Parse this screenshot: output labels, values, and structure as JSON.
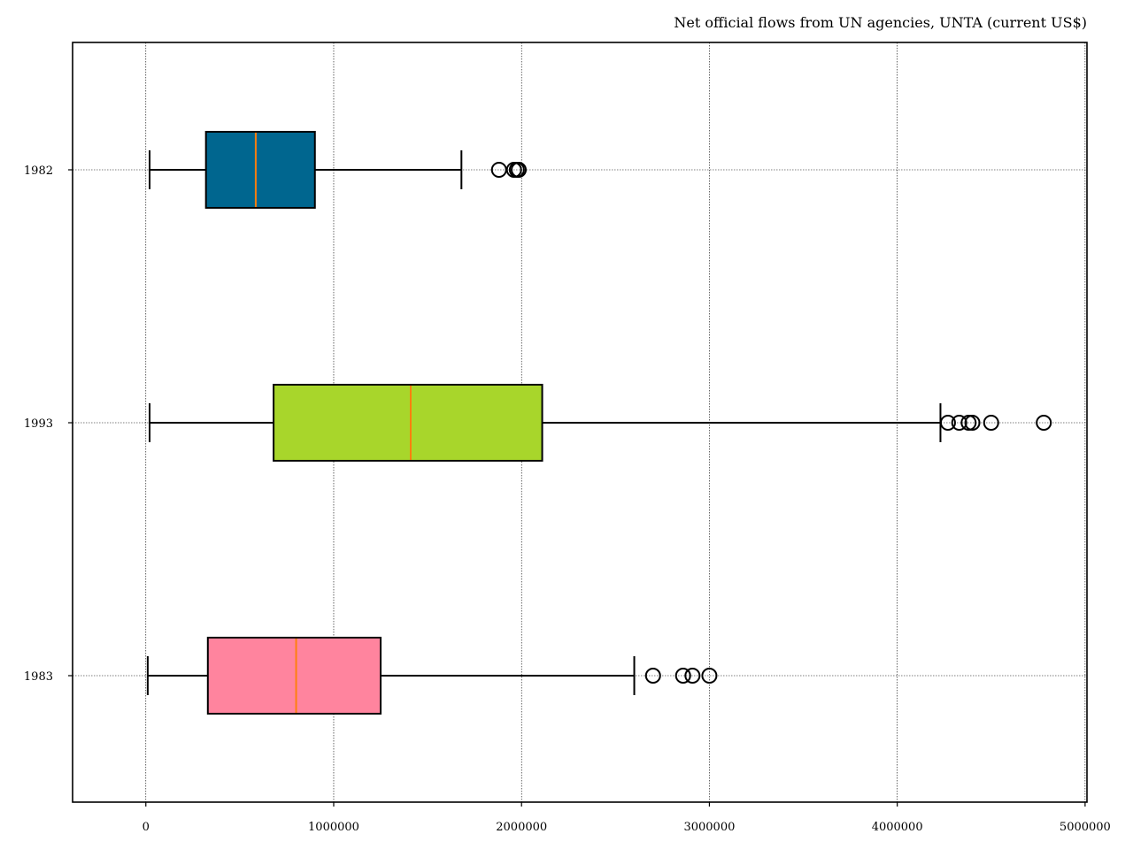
{
  "chart_data": {
    "type": "boxplot",
    "orientation": "horizontal",
    "title": "Net official flows from UN agencies, UNTA (current US$)",
    "xlabel": "",
    "ylabel": "",
    "xlim": [
      -390000,
      5010000
    ],
    "xticks": [
      0,
      1000000,
      2000000,
      3000000,
      4000000,
      5000000
    ],
    "grid": true,
    "categories": [
      "1982",
      "1993",
      "1983"
    ],
    "boxes": [
      {
        "label": "1982",
        "whisker_low": 20000,
        "q1": 320000,
        "median": 585000,
        "q3": 900000,
        "whisker_high": 1680000,
        "outliers": [
          1880000,
          1960000,
          1975000,
          1985000
        ],
        "color": "#00668f"
      },
      {
        "label": "1993",
        "whisker_low": 20000,
        "q1": 680000,
        "median": 1410000,
        "q3": 2110000,
        "whisker_high": 4230000,
        "outliers": [
          4270000,
          4330000,
          4380000,
          4400000,
          4500000,
          4780000
        ],
        "color": "#a8d62b"
      },
      {
        "label": "1983",
        "whisker_low": 10000,
        "q1": 330000,
        "median": 800000,
        "q3": 1250000,
        "whisker_high": 2600000,
        "outliers": [
          2700000,
          2860000,
          2910000,
          3000000
        ],
        "color": "#ff849e"
      }
    ],
    "median_color": "#ff7f0e"
  }
}
